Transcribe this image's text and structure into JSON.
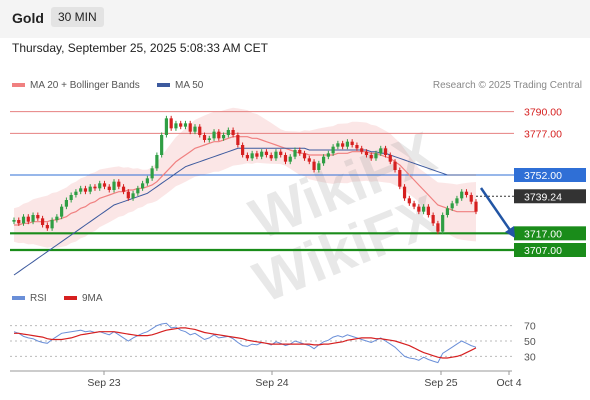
{
  "header": {
    "symbol": "Gold",
    "timeframe": "30 MIN"
  },
  "datetime": "Thursday, September 25, 2025 5:08:33 AM CET",
  "legend": {
    "ma20_label": "MA 20 + Bollinger Bands",
    "ma50_label": "MA 50",
    "rsi_label": "RSI",
    "rsi_ma_label": "9MA"
  },
  "credit": "Research © 2025 Trading Central",
  "watermark": "WikiFX",
  "colors": {
    "up": "#2f9e44",
    "down": "#d62020",
    "ma20": "#f08080",
    "ma50": "#3d5a9e",
    "resistance": "#e68080",
    "pivot": "#2f6fd6",
    "support": "#1a8c1a"
  },
  "chart_data": [
    {
      "type": "candlestick",
      "ylim": [
        3680,
        3800
      ],
      "x_ticks": [
        "Sep 23",
        "Sep 24",
        "Sep 25",
        "Oct 4"
      ],
      "levels": [
        {
          "label": "3790.00",
          "value": 3790,
          "kind": "resistance"
        },
        {
          "label": "3777.00",
          "value": 3777,
          "kind": "resistance"
        },
        {
          "label": "3752.00",
          "value": 3752,
          "kind": "pivot"
        },
        {
          "label": "3739.24",
          "value": 3739.24,
          "kind": "last"
        },
        {
          "label": "3717.00",
          "value": 3717,
          "kind": "support"
        },
        {
          "label": "3707.00",
          "value": 3707,
          "kind": "support"
        }
      ],
      "close": [
        3725,
        3723,
        3727,
        3724,
        3728,
        3726,
        3722,
        3720,
        3725,
        3727,
        3733,
        3737,
        3740,
        3742,
        3744,
        3742,
        3745,
        3744,
        3747,
        3745,
        3743,
        3748,
        3745,
        3742,
        3738,
        3741,
        3744,
        3747,
        3750,
        3756,
        3764,
        3776,
        3786,
        3780,
        3783,
        3781,
        3783,
        3778,
        3781,
        3776,
        3773,
        3774,
        3778,
        3774,
        3776,
        3779,
        3776,
        3770,
        3764,
        3762,
        3765,
        3763,
        3766,
        3764,
        3762,
        3766,
        3764,
        3760,
        3763,
        3767,
        3765,
        3762,
        3760,
        3755,
        3759,
        3763,
        3765,
        3769,
        3771,
        3769,
        3772,
        3770,
        3768,
        3766,
        3764,
        3762,
        3765,
        3768,
        3764,
        3760,
        3755,
        3745,
        3738,
        3735,
        3733,
        3730,
        3733,
        3728,
        3723,
        3718,
        3728,
        3732,
        3735,
        3738,
        3742,
        3740,
        3736,
        3730
      ],
      "ma20": [
        3722,
        3722,
        3723,
        3723,
        3724,
        3724,
        3724,
        3724,
        3725,
        3725,
        3726,
        3727,
        3729,
        3730,
        3732,
        3733,
        3735,
        3736,
        3738,
        3739,
        3740,
        3741,
        3742,
        3742,
        3743,
        3743,
        3744,
        3744,
        3745,
        3746,
        3748,
        3751,
        3754,
        3757,
        3760,
        3762,
        3764,
        3766,
        3768,
        3769,
        3770,
        3771,
        3772,
        3772,
        3773,
        3774,
        3775,
        3775,
        3775,
        3775,
        3774,
        3774,
        3773,
        3772,
        3771,
        3770,
        3769,
        3768,
        3767,
        3766,
        3765,
        3765,
        3764,
        3764,
        3764,
        3764,
        3764,
        3764,
        3765,
        3765,
        3765,
        3766,
        3766,
        3766,
        3766,
        3765,
        3765,
        3764,
        3763,
        3762,
        3760,
        3758,
        3755,
        3752,
        3749,
        3746,
        3743,
        3740,
        3737,
        3734,
        3733,
        3732,
        3731,
        3730,
        3730,
        3730,
        3730,
        3730
      ],
      "ma50": [
        3692,
        3694,
        3696,
        3698,
        3700,
        3702,
        3704,
        3706,
        3708,
        3710,
        3712,
        3714,
        3716,
        3718,
        3720,
        3722,
        3724,
        3726,
        3728,
        3730,
        3732,
        3734,
        3735,
        3736,
        3737,
        3738,
        3739,
        3740,
        3741,
        3743,
        3745,
        3747,
        3749,
        3751,
        3753,
        3755,
        3757,
        3758,
        3759,
        3760,
        3761,
        3762,
        3763,
        3764,
        3765,
        3766,
        3767,
        3768,
        3768,
        3768,
        3768,
        3768,
        3768,
        3768,
        3768,
        3768,
        3768,
        3768,
        3768,
        3768,
        3768,
        3768,
        3767,
        3767,
        3767,
        3767,
        3767,
        3767,
        3767,
        3767,
        3767,
        3767,
        3767,
        3767,
        3767,
        3766,
        3766,
        3765,
        3765,
        3764,
        3763,
        3762,
        3761,
        3760,
        3759,
        3758,
        3757,
        3756,
        3755,
        3754,
        3753,
        3752,
        3752,
        3752,
        3752,
        3752,
        3752,
        3752
      ]
    },
    {
      "type": "line",
      "ylim": [
        15,
        85
      ],
      "y_ticks": [
        70,
        50,
        30
      ],
      "series": [
        {
          "name": "RSI",
          "color": "#6a8fd8",
          "values": [
            62,
            60,
            56,
            54,
            53,
            50,
            48,
            47,
            52,
            56,
            60,
            61,
            62,
            63,
            64,
            62,
            63,
            61,
            62,
            60,
            58,
            62,
            58,
            54,
            50,
            54,
            57,
            60,
            62,
            66,
            70,
            72,
            73,
            67,
            68,
            64,
            62,
            58,
            60,
            56,
            52,
            54,
            58,
            54,
            55,
            56,
            53,
            48,
            44,
            43,
            46,
            45,
            48,
            47,
            45,
            49,
            47,
            44,
            46,
            50,
            48,
            46,
            44,
            40,
            45,
            49,
            51,
            55,
            57,
            55,
            58,
            56,
            54,
            52,
            50,
            48,
            51,
            54,
            50,
            46,
            42,
            36,
            30,
            28,
            27,
            25,
            29,
            26,
            24,
            22,
            34,
            38,
            42,
            46,
            50,
            47,
            44,
            42
          ]
        },
        {
          "name": "9MA",
          "color": "#d62020",
          "values": [
            60,
            60,
            59,
            58,
            57,
            56,
            55,
            53,
            52,
            52,
            52,
            53,
            54,
            56,
            58,
            59,
            60,
            61,
            62,
            62,
            62,
            62,
            61,
            60,
            59,
            58,
            57,
            57,
            57,
            58,
            60,
            62,
            64,
            65,
            66,
            67,
            67,
            66,
            65,
            63,
            61,
            60,
            59,
            58,
            57,
            56,
            55,
            54,
            53,
            51,
            50,
            49,
            48,
            47,
            46,
            46,
            46,
            46,
            46,
            46,
            46,
            46,
            46,
            45,
            45,
            46,
            46,
            47,
            48,
            49,
            51,
            52,
            53,
            54,
            54,
            54,
            53,
            53,
            52,
            51,
            50,
            48,
            46,
            44,
            41,
            38,
            35,
            33,
            31,
            29,
            28,
            28,
            29,
            30,
            32,
            35,
            38,
            41
          ]
        }
      ]
    }
  ]
}
